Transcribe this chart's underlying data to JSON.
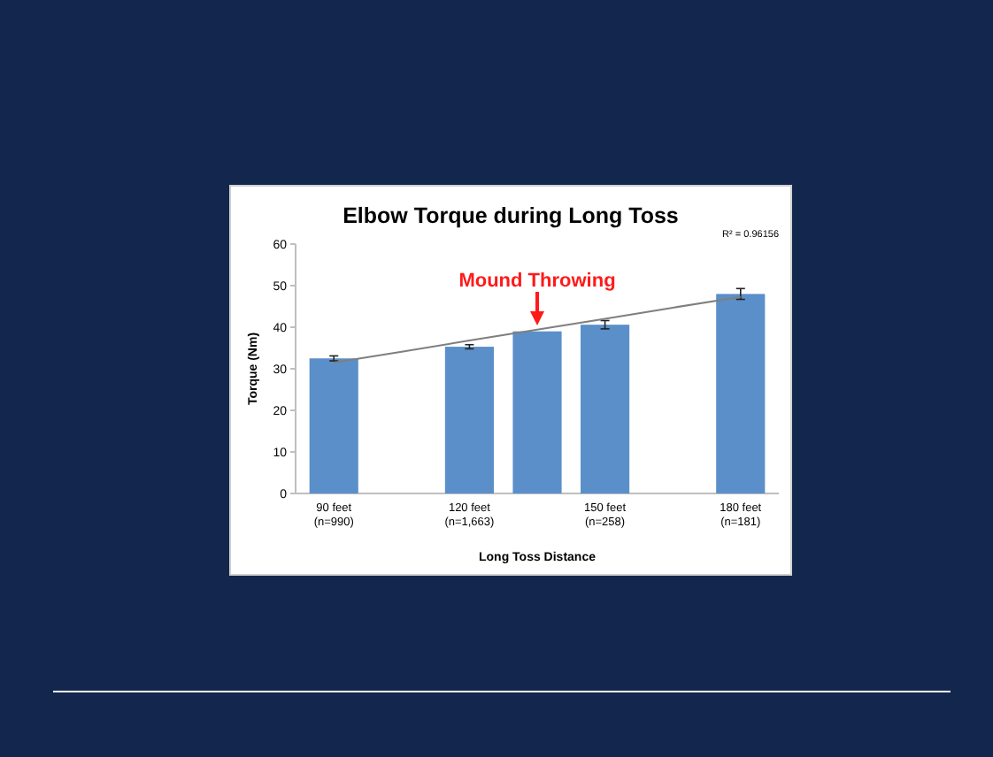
{
  "chart_data": {
    "type": "bar",
    "title": "Elbow Torque during Long Toss",
    "xlabel": "Long Toss Distance",
    "ylabel": "Torque (Nm)",
    "categories": [
      "90 feet\n(n=990)",
      null,
      "120 feet\n(n=1,663)",
      null,
      "150 feet\n(n=258)",
      null,
      "180 feet\n(n=181)"
    ],
    "series": [
      {
        "color": "#5b8fc9",
        "values": [
          32.5,
          null,
          35.3,
          39,
          40.6,
          null,
          48
        ],
        "errors": [
          0.6,
          null,
          0.5,
          null,
          1,
          null,
          1.3
        ]
      },
      {
        "type": "line",
        "color": "#7f7f7f",
        "values": [
          31.5,
          34.1,
          36.8,
          39.4,
          42.0,
          44.7,
          47.3
        ]
      }
    ],
    "ylim": [
      0,
      60
    ],
    "yticks": [
      0,
      10,
      20,
      30,
      40,
      50,
      60
    ],
    "grid": false,
    "annotations": [
      "R² = 0.96156",
      "Mound Throwing"
    ]
  }
}
